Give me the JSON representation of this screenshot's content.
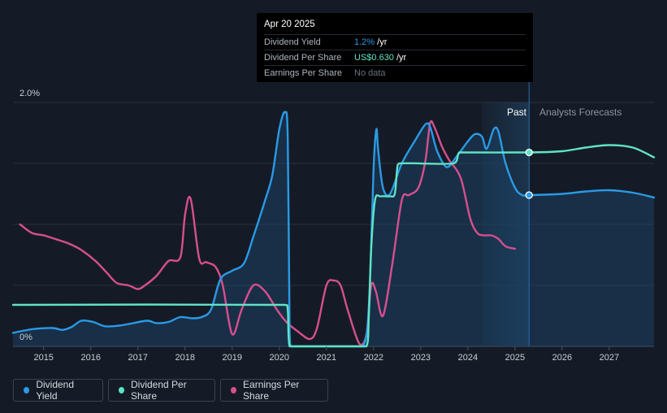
{
  "tooltip": {
    "date": "Apr 20 2025",
    "rows": [
      {
        "label": "Dividend Yield",
        "value": "1.2%",
        "unit": " /yr",
        "color": "#2a9ae6"
      },
      {
        "label": "Dividend Per Share",
        "value": "US$0.630",
        "unit": " /yr",
        "color": "#5fe3c4"
      },
      {
        "label": "Earnings Per Share",
        "value": "No data",
        "unit": "",
        "color": "#6a707a"
      }
    ]
  },
  "legend": [
    {
      "label": "Dividend Yield",
      "color": "#2a9ae6"
    },
    {
      "label": "Dividend Per Share",
      "color": "#5fe3c4"
    },
    {
      "label": "Earnings Per Share",
      "color": "#d64f8e"
    }
  ],
  "chart_data": {
    "type": "line",
    "y_tick_labels": [
      "2.0%",
      "0%"
    ],
    "ylim": [
      0,
      2.0
    ],
    "x_tick_labels": [
      "2015",
      "2016",
      "2017",
      "2018",
      "2019",
      "2020",
      "2021",
      "2022",
      "2023",
      "2024",
      "2025",
      "2026",
      "2027"
    ],
    "xlim": [
      2014.35,
      2027.95
    ],
    "grid": true,
    "past_label": "Past",
    "forecast_label": "Analysts Forecasts",
    "present_x": 2025.3,
    "series": [
      {
        "name": "Dividend Yield",
        "color": "#2a9ae6",
        "points": [
          [
            2014.35,
            0.11
          ],
          [
            2014.6,
            0.13
          ],
          [
            2014.85,
            0.145
          ],
          [
            2015.2,
            0.15
          ],
          [
            2015.4,
            0.135
          ],
          [
            2015.6,
            0.16
          ],
          [
            2015.8,
            0.21
          ],
          [
            2016.05,
            0.2
          ],
          [
            2016.3,
            0.165
          ],
          [
            2016.6,
            0.17
          ],
          [
            2016.9,
            0.19
          ],
          [
            2017.2,
            0.21
          ],
          [
            2017.4,
            0.19
          ],
          [
            2017.65,
            0.2
          ],
          [
            2017.9,
            0.24
          ],
          [
            2018.15,
            0.23
          ],
          [
            2018.35,
            0.24
          ],
          [
            2018.55,
            0.3
          ],
          [
            2018.75,
            0.55
          ],
          [
            2019.0,
            0.62
          ],
          [
            2019.25,
            0.68
          ],
          [
            2019.45,
            0.9
          ],
          [
            2019.7,
            1.2
          ],
          [
            2019.85,
            1.4
          ],
          [
            2020.0,
            1.78
          ],
          [
            2020.12,
            1.92
          ],
          [
            2020.18,
            1.7
          ],
          [
            2020.22,
            0.1
          ],
          [
            2020.26,
            0.0
          ],
          [
            2021.75,
            0.0
          ],
          [
            2021.8,
            0.02
          ],
          [
            2021.87,
            0.15
          ],
          [
            2021.93,
            0.6
          ],
          [
            2022.0,
            1.45
          ],
          [
            2022.06,
            1.78
          ],
          [
            2022.1,
            1.6
          ],
          [
            2022.2,
            1.3
          ],
          [
            2022.35,
            1.25
          ],
          [
            2022.6,
            1.5
          ],
          [
            2022.9,
            1.7
          ],
          [
            2023.1,
            1.82
          ],
          [
            2023.2,
            1.8
          ],
          [
            2023.35,
            1.6
          ],
          [
            2023.55,
            1.47
          ],
          [
            2023.75,
            1.55
          ],
          [
            2024.0,
            1.68
          ],
          [
            2024.15,
            1.74
          ],
          [
            2024.3,
            1.72
          ],
          [
            2024.4,
            1.62
          ],
          [
            2024.55,
            1.78
          ],
          [
            2024.65,
            1.76
          ],
          [
            2024.8,
            1.5
          ],
          [
            2025.0,
            1.3
          ],
          [
            2025.15,
            1.24
          ],
          [
            2025.3,
            1.24
          ],
          [
            2026.0,
            1.25
          ],
          [
            2026.5,
            1.27
          ],
          [
            2027.0,
            1.28
          ],
          [
            2027.5,
            1.26
          ],
          [
            2027.95,
            1.22
          ]
        ]
      },
      {
        "name": "Dividend Per Share",
        "color": "#5fe3c4",
        "points": [
          [
            2014.35,
            0.34
          ],
          [
            2020.12,
            0.34
          ],
          [
            2020.18,
            0.3
          ],
          [
            2020.22,
            0.0
          ],
          [
            2021.85,
            0.0
          ],
          [
            2021.9,
            0.25
          ],
          [
            2021.95,
            0.8
          ],
          [
            2022.03,
            1.2
          ],
          [
            2022.15,
            1.23
          ],
          [
            2022.35,
            1.23
          ],
          [
            2022.45,
            1.25
          ],
          [
            2022.5,
            1.45
          ],
          [
            2022.55,
            1.5
          ],
          [
            2023.7,
            1.5
          ],
          [
            2023.8,
            1.58
          ],
          [
            2023.85,
            1.59
          ],
          [
            2025.3,
            1.59
          ],
          [
            2026.0,
            1.6
          ],
          [
            2026.5,
            1.63
          ],
          [
            2027.0,
            1.65
          ],
          [
            2027.5,
            1.63
          ],
          [
            2027.95,
            1.55
          ]
        ]
      },
      {
        "name": "Earnings Per Share",
        "color": "#d64f8e",
        "points": [
          [
            2014.5,
            1.0
          ],
          [
            2014.75,
            0.93
          ],
          [
            2015.0,
            0.91
          ],
          [
            2015.25,
            0.88
          ],
          [
            2015.55,
            0.84
          ],
          [
            2015.8,
            0.79
          ],
          [
            2016.1,
            0.7
          ],
          [
            2016.35,
            0.6
          ],
          [
            2016.55,
            0.52
          ],
          [
            2016.8,
            0.5
          ],
          [
            2017.0,
            0.47
          ],
          [
            2017.15,
            0.5
          ],
          [
            2017.4,
            0.58
          ],
          [
            2017.65,
            0.7
          ],
          [
            2017.9,
            0.73
          ],
          [
            2018.0,
            1.08
          ],
          [
            2018.12,
            1.21
          ],
          [
            2018.3,
            0.72
          ],
          [
            2018.45,
            0.69
          ],
          [
            2018.65,
            0.65
          ],
          [
            2018.8,
            0.5
          ],
          [
            2019.0,
            0.1
          ],
          [
            2019.2,
            0.3
          ],
          [
            2019.45,
            0.5
          ],
          [
            2019.7,
            0.45
          ],
          [
            2019.95,
            0.3
          ],
          [
            2020.15,
            0.2
          ],
          [
            2020.4,
            0.12
          ],
          [
            2020.65,
            0.06
          ],
          [
            2020.8,
            0.15
          ],
          [
            2021.0,
            0.5
          ],
          [
            2021.15,
            0.54
          ],
          [
            2021.3,
            0.5
          ],
          [
            2021.45,
            0.3
          ],
          [
            2021.7,
            0.02
          ],
          [
            2021.85,
            0.1
          ],
          [
            2021.95,
            0.5
          ],
          [
            2022.05,
            0.45
          ],
          [
            2022.2,
            0.25
          ],
          [
            2022.4,
            0.68
          ],
          [
            2022.6,
            1.2
          ],
          [
            2022.75,
            1.24
          ],
          [
            2022.95,
            1.3
          ],
          [
            2023.1,
            1.52
          ],
          [
            2023.2,
            1.83
          ],
          [
            2023.3,
            1.79
          ],
          [
            2023.45,
            1.64
          ],
          [
            2023.6,
            1.53
          ],
          [
            2023.85,
            1.38
          ],
          [
            2024.05,
            1.05
          ],
          [
            2024.2,
            0.93
          ],
          [
            2024.35,
            0.91
          ],
          [
            2024.5,
            0.91
          ],
          [
            2024.65,
            0.88
          ],
          [
            2024.8,
            0.82
          ],
          [
            2025.0,
            0.8
          ]
        ]
      }
    ]
  }
}
